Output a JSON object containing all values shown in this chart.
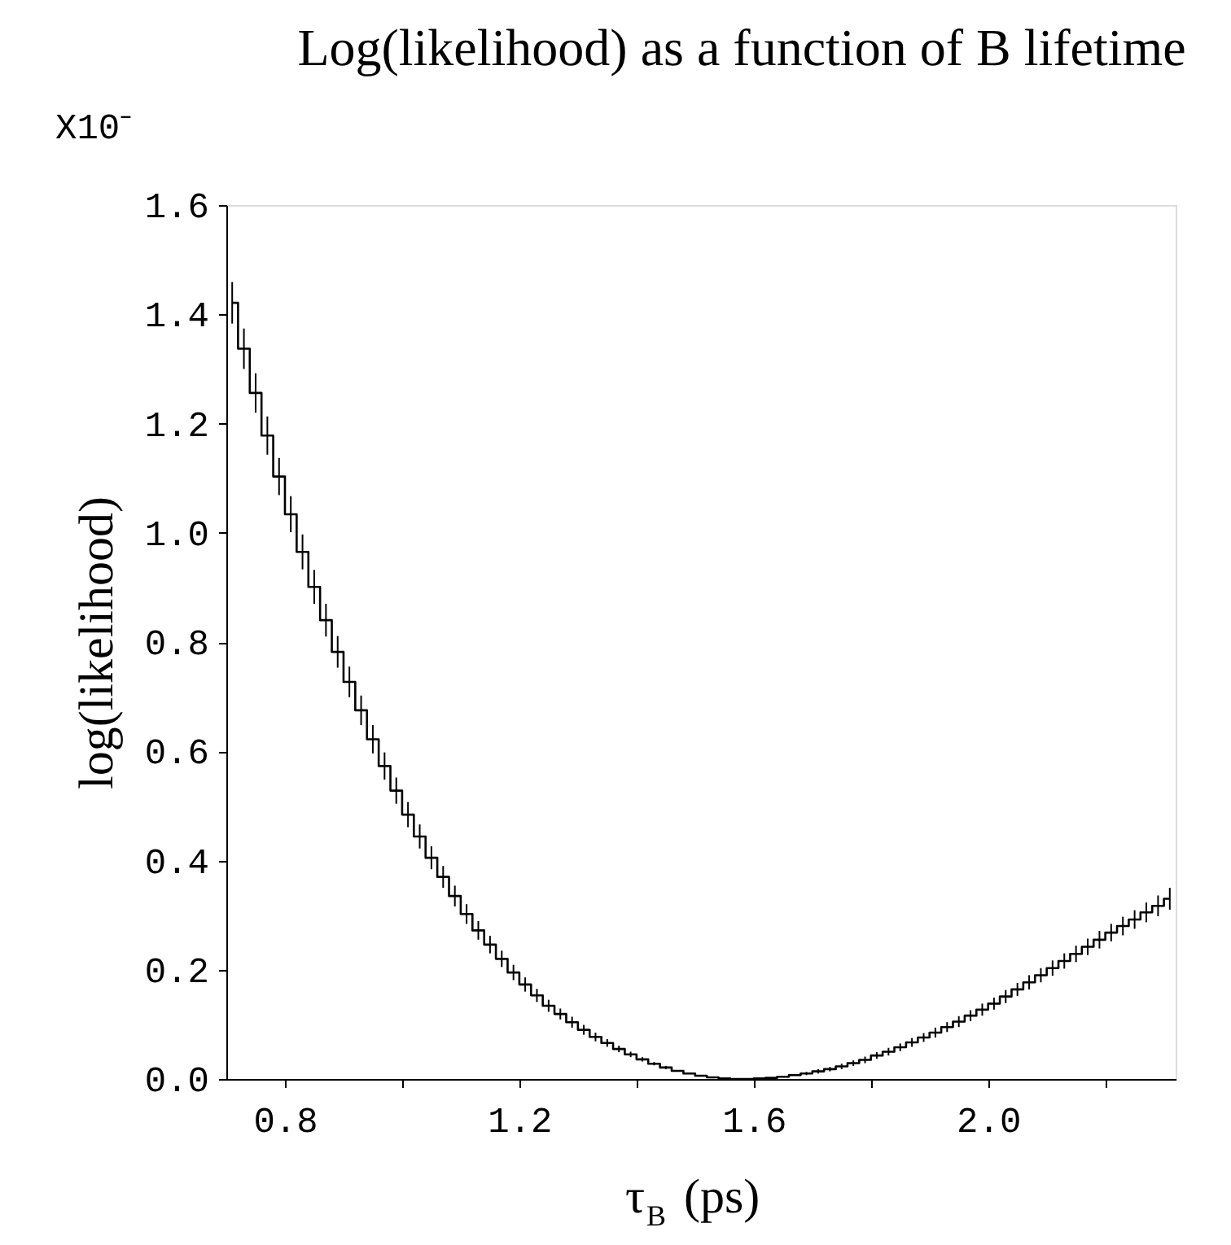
{
  "chart_data": {
    "type": "step",
    "title": "Log(likelihood) as a function of B lifetime",
    "xlabel": "τ$_{B}$ (ps)",
    "ylabel": "log(likelihood)",
    "annotations": [
      "X10⁻"
    ],
    "x": [
      0.71,
      0.73,
      0.75,
      0.77,
      0.79,
      0.81,
      0.83,
      0.85,
      0.87,
      0.89,
      0.91,
      0.93,
      0.95,
      0.97,
      0.99,
      1.01,
      1.03,
      1.05,
      1.07,
      1.09,
      1.11,
      1.13,
      1.15,
      1.17,
      1.19,
      1.21,
      1.23,
      1.25,
      1.27,
      1.29,
      1.31,
      1.33,
      1.35,
      1.37,
      1.39,
      1.41,
      1.43,
      1.45,
      1.47,
      1.49,
      1.51,
      1.53,
      1.55,
      1.57,
      1.59,
      1.61,
      1.63,
      1.65,
      1.67,
      1.69,
      1.71,
      1.73,
      1.75,
      1.77,
      1.79,
      1.81,
      1.83,
      1.85,
      1.87,
      1.89,
      1.91,
      1.93,
      1.95,
      1.97,
      1.99,
      2.01,
      2.03,
      2.05,
      2.07,
      2.09,
      2.11,
      2.13,
      2.15,
      2.17,
      2.19,
      2.21,
      2.23,
      2.25,
      2.27,
      2.29,
      2.31
    ],
    "values": [
      1.421,
      1.337,
      1.256,
      1.178,
      1.103,
      1.034,
      0.965,
      0.901,
      0.84,
      0.782,
      0.727,
      0.675,
      0.622,
      0.573,
      0.528,
      0.484,
      0.444,
      0.405,
      0.37,
      0.335,
      0.302,
      0.272,
      0.246,
      0.22,
      0.195,
      0.173,
      0.153,
      0.134,
      0.119,
      0.104,
      0.09,
      0.077,
      0.066,
      0.055,
      0.045,
      0.036,
      0.028,
      0.021,
      0.015,
      0.01,
      0.006,
      0.003,
      0.001,
      0.0,
      0.0,
      0.001,
      0.002,
      0.004,
      0.007,
      0.01,
      0.014,
      0.018,
      0.023,
      0.029,
      0.035,
      0.043,
      0.05,
      0.058,
      0.067,
      0.076,
      0.085,
      0.095,
      0.105,
      0.116,
      0.127,
      0.138,
      0.151,
      0.164,
      0.177,
      0.19,
      0.203,
      0.216,
      0.229,
      0.242,
      0.255,
      0.268,
      0.28,
      0.292,
      0.305,
      0.317,
      0.33
    ],
    "errors": [
      0.038,
      0.037,
      0.036,
      0.035,
      0.034,
      0.033,
      0.032,
      0.031,
      0.03,
      0.029,
      0.028,
      0.027,
      0.026,
      0.025,
      0.024,
      0.023,
      0.022,
      0.021,
      0.02,
      0.019,
      0.018,
      0.017,
      0.016,
      0.015,
      0.014,
      0.013,
      0.012,
      0.011,
      0.01,
      0.01,
      0.009,
      0.008,
      0.007,
      0.006,
      0.005,
      0.004,
      0.003,
      0.003,
      null,
      null,
      null,
      null,
      null,
      null,
      null,
      null,
      null,
      null,
      null,
      0.003,
      0.004,
      0.004,
      0.005,
      0.005,
      0.006,
      0.006,
      0.007,
      0.007,
      0.008,
      0.008,
      0.009,
      0.009,
      0.01,
      0.01,
      0.011,
      0.011,
      0.012,
      0.012,
      0.013,
      0.013,
      0.014,
      0.014,
      0.015,
      0.015,
      0.016,
      0.016,
      0.017,
      0.017,
      0.018,
      0.019,
      0.02
    ],
    "color": "#000000",
    "xlim": [
      0.7,
      2.32
    ],
    "xticks": [
      0.8,
      {
        "value": 1.0,
        "label": null
      },
      1.2,
      {
        "value": 1.4,
        "label": null
      },
      1.6,
      {
        "value": 1.8,
        "label": null
      },
      {
        "value": 2.0,
        "label": "2.0"
      },
      {
        "value": 2.2,
        "label": null
      }
    ],
    "ylim": [
      0,
      1.6
    ],
    "yticks": [
      {
        "value": 0,
        "label": "0.0"
      },
      0.2,
      0.4,
      0.6,
      0.8,
      {
        "value": 1,
        "label": "1.0"
      },
      1.2,
      1.4,
      1.6
    ],
    "grid": false
  }
}
